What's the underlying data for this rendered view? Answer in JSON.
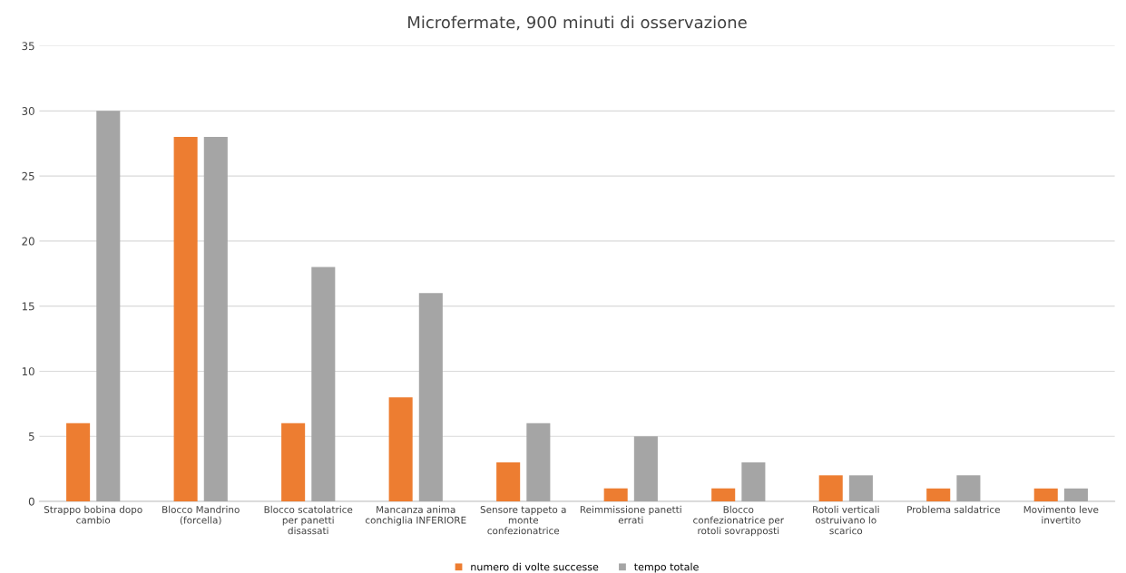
{
  "chart_data": {
    "type": "bar",
    "title": "Microfermate, 900 minuti di osservazione",
    "categories": [
      "Strappo bobina dopo cambio",
      "Blocco Mandrino (forcella)",
      "Blocco scatolatrice per panetti disassati",
      "Mancanza anima conchiglia INFERIORE",
      "Sensore tappeto a monte confezionatrice",
      "Reimmissione panetti errati",
      "Blocco confezionatrice per rotoli sovrapposti",
      "Rotoli verticali ostruivano lo scarico",
      "Problema saldatrice",
      "Movimento leve invertito"
    ],
    "series": [
      {
        "name": "numero di volte successe",
        "color": "#ed7d31",
        "values": [
          6,
          28,
          6,
          8,
          3,
          1,
          1,
          2,
          1,
          1
        ]
      },
      {
        "name": "tempo totale",
        "color": "#a5a5a5",
        "values": [
          30,
          28,
          18,
          16,
          6,
          5,
          3,
          2,
          2,
          1
        ]
      }
    ],
    "ylim": [
      0,
      35
    ],
    "yticks": [
      0,
      5,
      10,
      15,
      20,
      25,
      30,
      35
    ],
    "grid": "y",
    "legend": "bottom"
  }
}
